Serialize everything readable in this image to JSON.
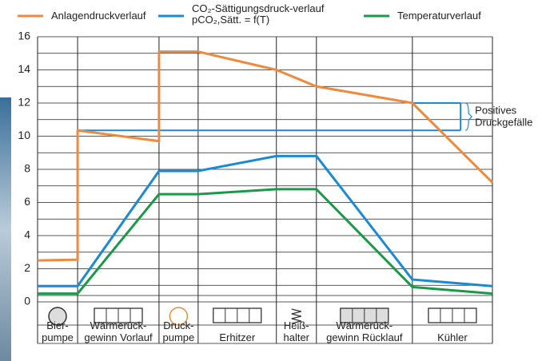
{
  "chart_data": {
    "type": "line",
    "xlim": [
      0,
      100
    ],
    "ylim": [
      0,
      16
    ],
    "yticks": [
      0,
      2,
      4,
      6,
      8,
      10,
      12,
      14,
      16
    ],
    "minor_yticks": [
      1,
      3,
      5,
      7,
      9,
      11,
      13,
      15
    ],
    "grid": true,
    "stage_edges": [
      0,
      8.8,
      26.7,
      35.3,
      52.5,
      61.3,
      82.4,
      100
    ],
    "categories": [
      "Bier-\npumpe",
      "Wärmerück-\ngewinn Vorlauf",
      "Druck-\npumpe",
      "Erhitzer",
      "Heiß-\nhalter",
      "Wärmerück-\ngewinn Rücklauf",
      "Kühler"
    ],
    "series": [
      {
        "name": "Anlagendruckverlauf",
        "color": "#ef8a3c",
        "x": [
          0,
          8.8,
          8.8,
          26.7,
          26.7,
          35.3,
          52.5,
          61.3,
          82.4,
          100
        ],
        "values": [
          2.5,
          2.55,
          10.35,
          9.7,
          15.1,
          15.1,
          14,
          13,
          12,
          7.2
        ]
      },
      {
        "name": "CO₂-Sättigungsdruck-verlauf pCO₂,Sätt. = f(T)",
        "color": "#1a8ad4",
        "x": [
          0,
          8.8,
          26.7,
          35.3,
          52.5,
          61.3,
          82.4,
          100
        ],
        "values": [
          0.95,
          0.95,
          7.9,
          7.9,
          8.8,
          8.8,
          1.35,
          0.95
        ]
      },
      {
        "name": "Temperaturverlauf",
        "color": "#1a9a48",
        "x": [
          0,
          8.8,
          26.7,
          35.3,
          52.5,
          61.3,
          82.4,
          100
        ],
        "values": [
          0.5,
          0.5,
          6.5,
          6.5,
          6.8,
          6.8,
          0.9,
          0.5
        ]
      }
    ],
    "pressure_gap": {
      "label": [
        "Positives",
        "Druckgefälle"
      ],
      "x": [
        8.8,
        82.4,
        93
      ],
      "low": 10.35,
      "high": 12,
      "color": "#1a8ad4"
    }
  }
}
